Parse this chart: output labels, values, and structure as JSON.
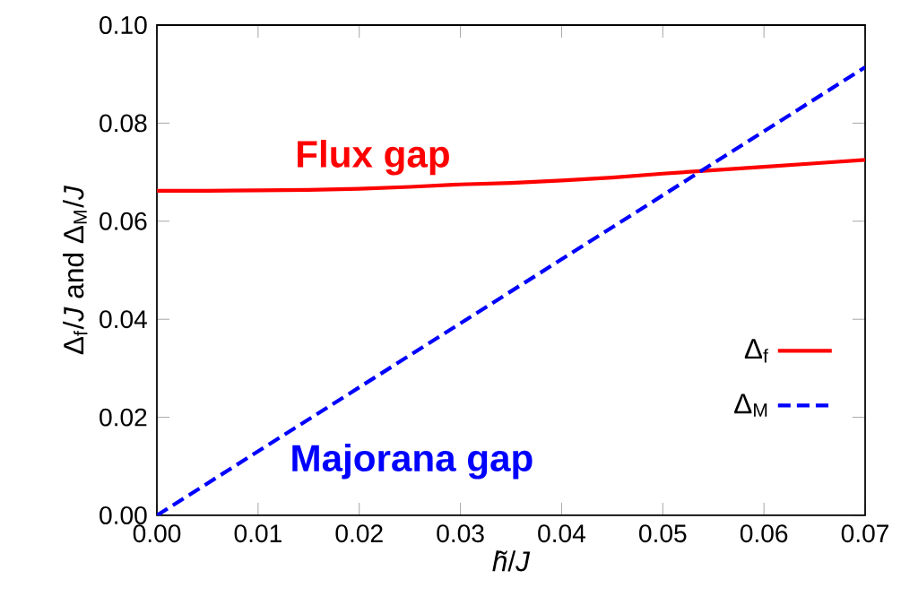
{
  "chart_data": {
    "type": "line",
    "xlabel": "*h̃*/*J*",
    "ylabel": "Δ$_{f}$/*J* and Δ$_{M}$/*J*",
    "x": [
      0,
      0.005,
      0.01,
      0.015,
      0.02,
      0.025,
      0.03,
      0.035,
      0.04,
      0.045,
      0.05,
      0.055,
      0.06,
      0.065,
      0.07
    ],
    "series": [
      {
        "name": "Δ$_{f}$",
        "color": "#ff0000",
        "line_style": "solid",
        "values": [
          0.0662,
          0.0662,
          0.0663,
          0.0664,
          0.0666,
          0.067,
          0.0675,
          0.0678,
          0.0683,
          0.0689,
          0.0697,
          0.0704,
          0.0711,
          0.0718,
          0.0725
        ]
      },
      {
        "name": "Δ$_{M}$",
        "color": "#0000ff",
        "line_style": "dashed",
        "x": [
          0,
          0.07
        ],
        "values": [
          0,
          0.0914
        ]
      }
    ],
    "annotations": [
      "Flux gap",
      "Majorana gap"
    ],
    "xlim": [
      0,
      0.07
    ],
    "ylim": [
      0,
      0.1
    ],
    "xticks": [
      {
        "value": 0,
        "label": "0.00"
      },
      0.01,
      0.02,
      0.03,
      0.04,
      0.05,
      0.06,
      0.07
    ],
    "yticks": [
      {
        "value": 0,
        "label": "0.00"
      },
      0.02,
      0.04,
      0.06,
      0.08,
      {
        "value": 0.1,
        "label": "0.10"
      }
    ],
    "grid": false,
    "legend": "right",
    "marker": "none"
  }
}
